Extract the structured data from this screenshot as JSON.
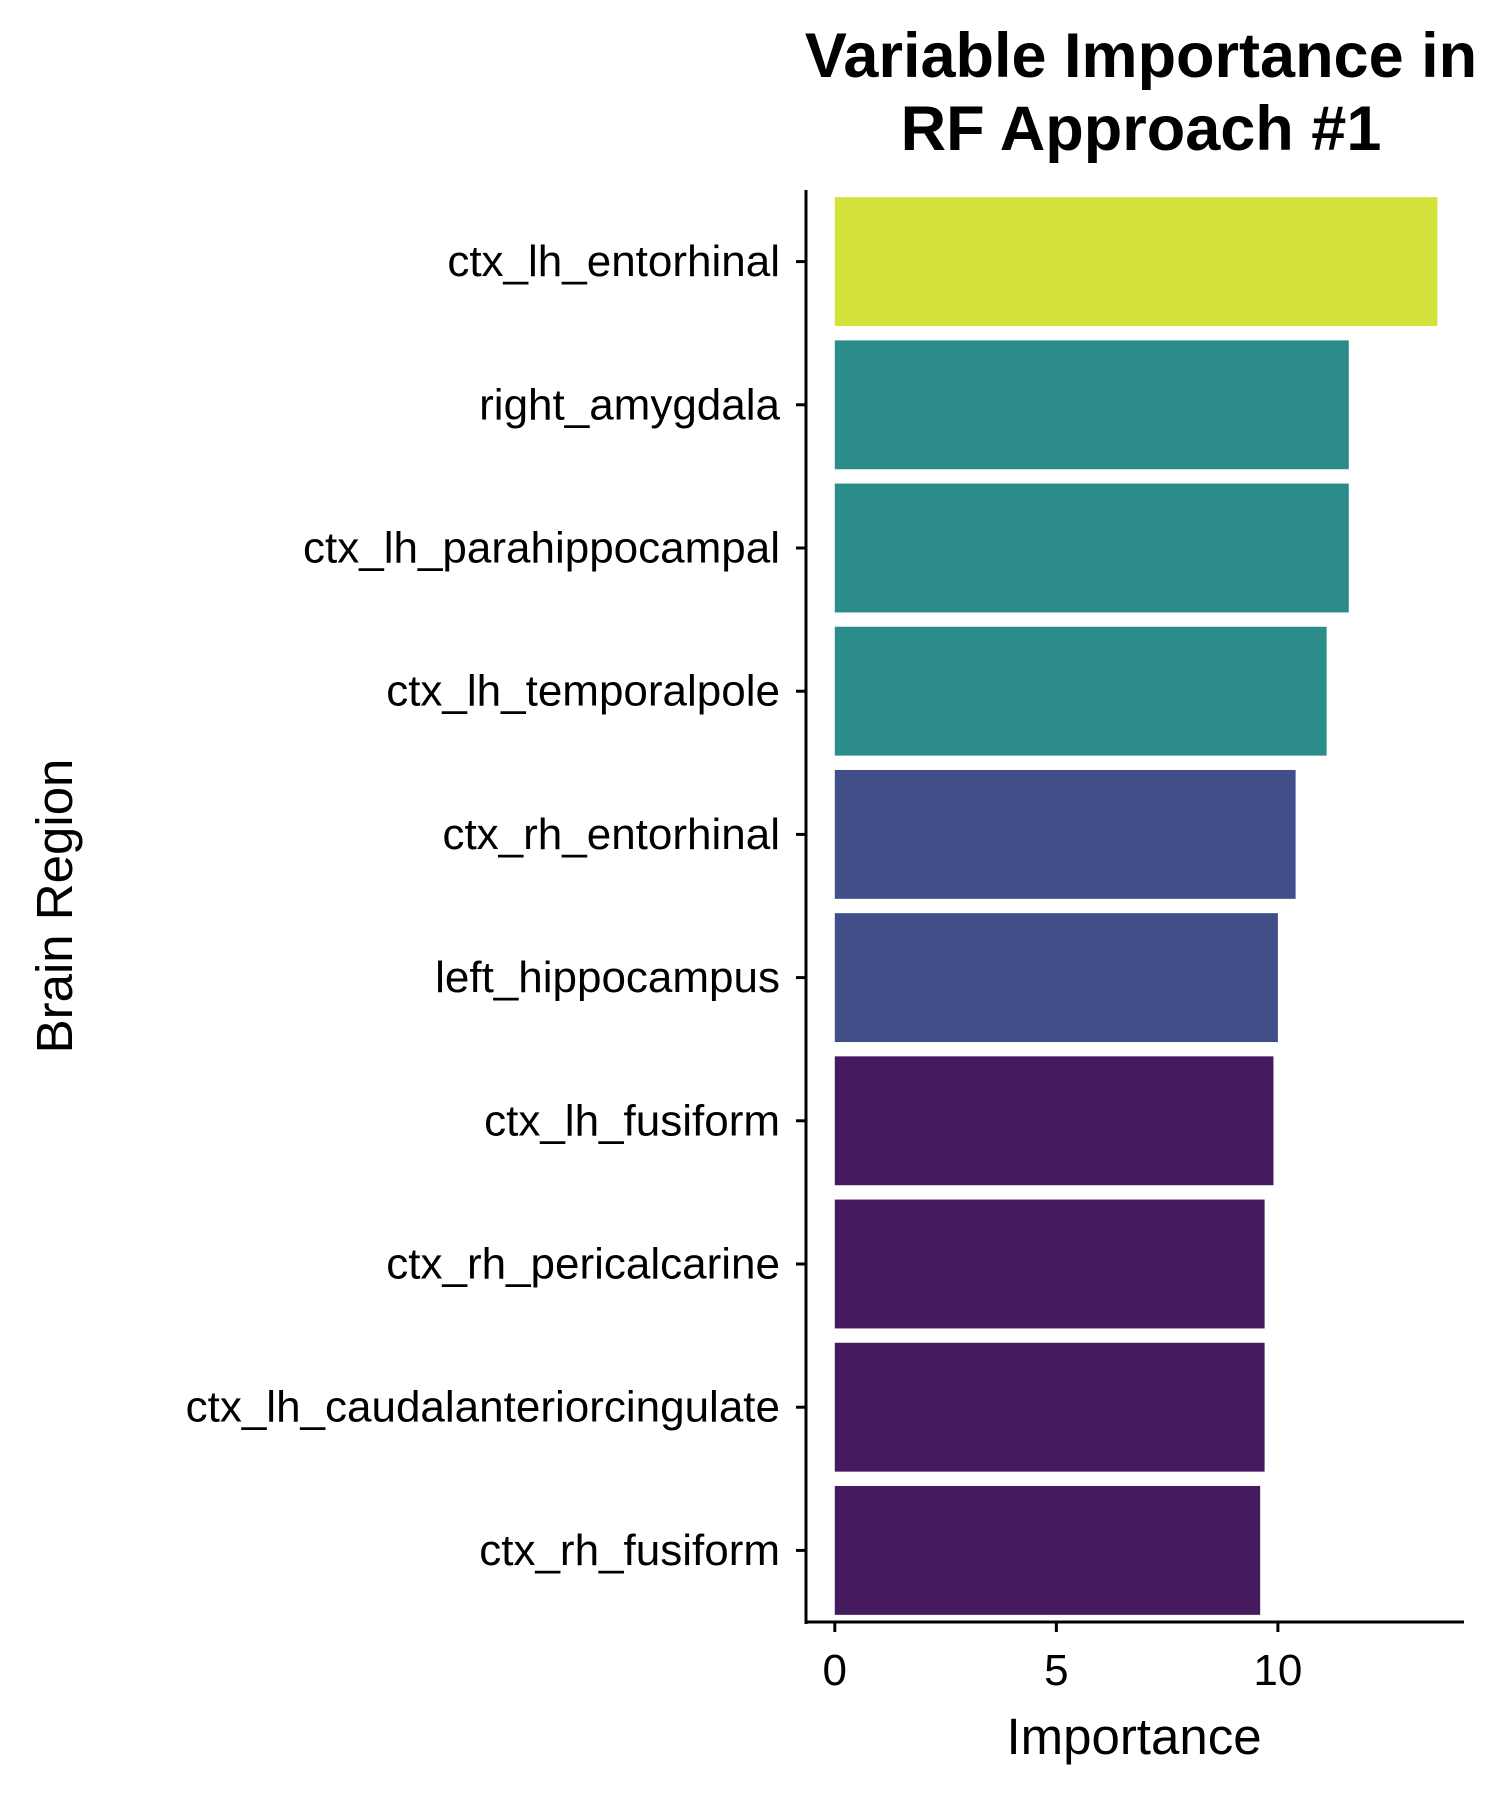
{
  "chart_data": {
    "type": "bar",
    "orientation": "horizontal",
    "title_lines": [
      "Variable Importance in",
      "RF Approach #1"
    ],
    "xlabel": "Importance",
    "ylabel": "Brain Region",
    "xlim": [
      -0.65,
      14.2
    ],
    "xticks": [
      0,
      5,
      10
    ],
    "grid": false,
    "legend": "none",
    "categories": [
      "ctx_lh_entorhinal",
      "right_amygdala",
      "ctx_lh_parahippocampal",
      "ctx_lh_temporalpole",
      "ctx_rh_entorhinal",
      "left_hippocampus",
      "ctx_lh_fusiform",
      "ctx_rh_pericalcarine",
      "ctx_lh_caudalanteriorcingulate",
      "ctx_rh_fusiform"
    ],
    "values": [
      13.6,
      11.6,
      11.6,
      11.1,
      10.4,
      10.0,
      9.9,
      9.7,
      9.7,
      9.6
    ],
    "colors": [
      "#d2e23a",
      "#2c8c89",
      "#2c8c89",
      "#2c8c89",
      "#414e88",
      "#414e88",
      "#461a5e",
      "#461a5e",
      "#461a5e",
      "#461a5e"
    ]
  }
}
